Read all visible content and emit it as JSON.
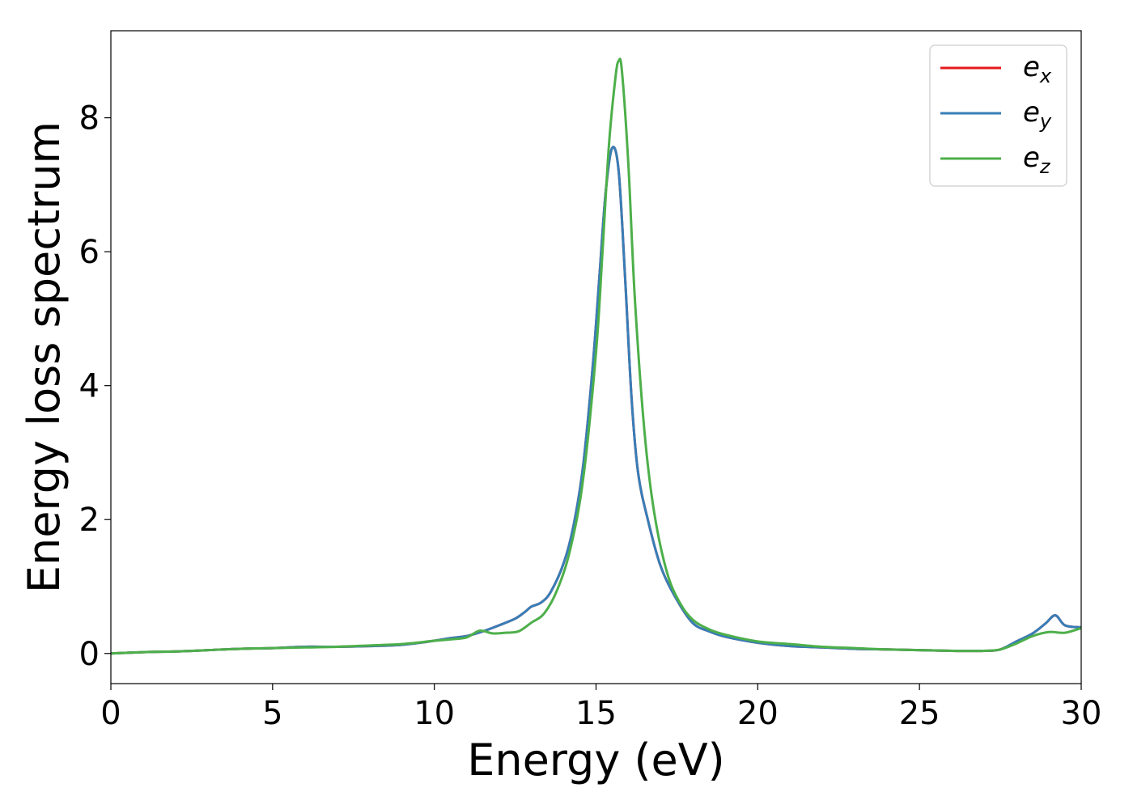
{
  "chart_data": {
    "type": "line",
    "title": "",
    "xlabel": "Energy (eV)",
    "ylabel": "Energy loss spectrum",
    "xlim": [
      0,
      30
    ],
    "ylim": [
      -0.45,
      9.3
    ],
    "xticks": [
      0,
      5,
      10,
      15,
      20,
      25,
      30
    ],
    "xtick_labels": [
      "0",
      "5",
      "10",
      "15",
      "20",
      "25",
      "30"
    ],
    "yticks": [
      0,
      2,
      4,
      6,
      8
    ],
    "ytick_labels": [
      "0",
      "2",
      "4",
      "6",
      "8"
    ],
    "grid": false,
    "legend_position": "top-right",
    "series": [
      {
        "name": "e_x",
        "legend_base": "e",
        "legend_sub": "x",
        "color": "#e41a1c",
        "x": [
          0,
          1,
          2,
          3,
          4,
          5,
          6,
          7,
          8,
          9,
          10,
          10.5,
          11,
          11.5,
          12,
          12.5,
          12.8,
          13,
          13.3,
          13.6,
          14,
          14.3,
          14.6,
          14.9,
          15.1,
          15.3,
          15.5,
          15.7,
          15.9,
          16.1,
          16.3,
          16.6,
          17,
          17.5,
          18,
          18.5,
          19,
          20,
          21,
          22,
          23,
          24,
          25,
          26,
          27,
          27.5,
          28,
          28.5,
          28.9,
          29.2,
          29.5,
          30
        ],
        "y": [
          0,
          0.02,
          0.03,
          0.05,
          0.07,
          0.08,
          0.1,
          0.1,
          0.11,
          0.13,
          0.19,
          0.23,
          0.26,
          0.33,
          0.42,
          0.52,
          0.62,
          0.7,
          0.76,
          0.92,
          1.35,
          1.9,
          2.8,
          4.3,
          5.6,
          6.9,
          7.55,
          7.2,
          5.6,
          3.8,
          2.7,
          2.0,
          1.3,
          0.8,
          0.45,
          0.33,
          0.25,
          0.16,
          0.11,
          0.09,
          0.07,
          0.06,
          0.05,
          0.04,
          0.04,
          0.06,
          0.18,
          0.3,
          0.45,
          0.57,
          0.42,
          0.39
        ]
      },
      {
        "name": "e_y",
        "legend_base": "e",
        "legend_sub": "y",
        "color": "#377eb8",
        "x": [
          0,
          1,
          2,
          3,
          4,
          5,
          6,
          7,
          8,
          9,
          10,
          10.5,
          11,
          11.5,
          12,
          12.5,
          12.8,
          13,
          13.3,
          13.6,
          14,
          14.3,
          14.6,
          14.9,
          15.1,
          15.3,
          15.5,
          15.7,
          15.9,
          16.1,
          16.3,
          16.6,
          17,
          17.5,
          18,
          18.5,
          19,
          20,
          21,
          22,
          23,
          24,
          25,
          26,
          27,
          27.5,
          28,
          28.5,
          28.9,
          29.2,
          29.5,
          30
        ],
        "y": [
          0,
          0.02,
          0.03,
          0.05,
          0.07,
          0.08,
          0.1,
          0.1,
          0.11,
          0.13,
          0.19,
          0.23,
          0.26,
          0.33,
          0.42,
          0.52,
          0.62,
          0.7,
          0.76,
          0.92,
          1.35,
          1.9,
          2.8,
          4.3,
          5.6,
          6.9,
          7.55,
          7.2,
          5.6,
          3.8,
          2.7,
          2.0,
          1.3,
          0.8,
          0.45,
          0.33,
          0.25,
          0.16,
          0.11,
          0.09,
          0.07,
          0.06,
          0.05,
          0.04,
          0.04,
          0.06,
          0.18,
          0.3,
          0.45,
          0.57,
          0.42,
          0.39
        ]
      },
      {
        "name": "e_z",
        "legend_base": "e",
        "legend_sub": "z",
        "color": "#4daf4a",
        "x": [
          0,
          1,
          2,
          3,
          4,
          5,
          6,
          7,
          8,
          9,
          10,
          10.5,
          11,
          11.4,
          11.8,
          12.2,
          12.6,
          13,
          13.4,
          13.8,
          14.2,
          14.6,
          15,
          15.2,
          15.4,
          15.6,
          15.7,
          15.8,
          16,
          16.2,
          16.5,
          16.8,
          17.2,
          17.6,
          18,
          18.5,
          19,
          20,
          21,
          22,
          23,
          24,
          25,
          26,
          27,
          27.5,
          28,
          28.5,
          29,
          29.5,
          30
        ],
        "y": [
          0,
          0.02,
          0.03,
          0.05,
          0.07,
          0.08,
          0.09,
          0.1,
          0.12,
          0.14,
          0.19,
          0.21,
          0.24,
          0.34,
          0.3,
          0.31,
          0.33,
          0.46,
          0.6,
          0.95,
          1.55,
          2.6,
          4.5,
          6.0,
          7.6,
          8.6,
          8.85,
          8.7,
          7.3,
          5.3,
          3.3,
          2.1,
          1.2,
          0.75,
          0.5,
          0.36,
          0.28,
          0.18,
          0.14,
          0.1,
          0.08,
          0.06,
          0.05,
          0.04,
          0.04,
          0.06,
          0.15,
          0.26,
          0.32,
          0.31,
          0.38
        ]
      }
    ]
  }
}
